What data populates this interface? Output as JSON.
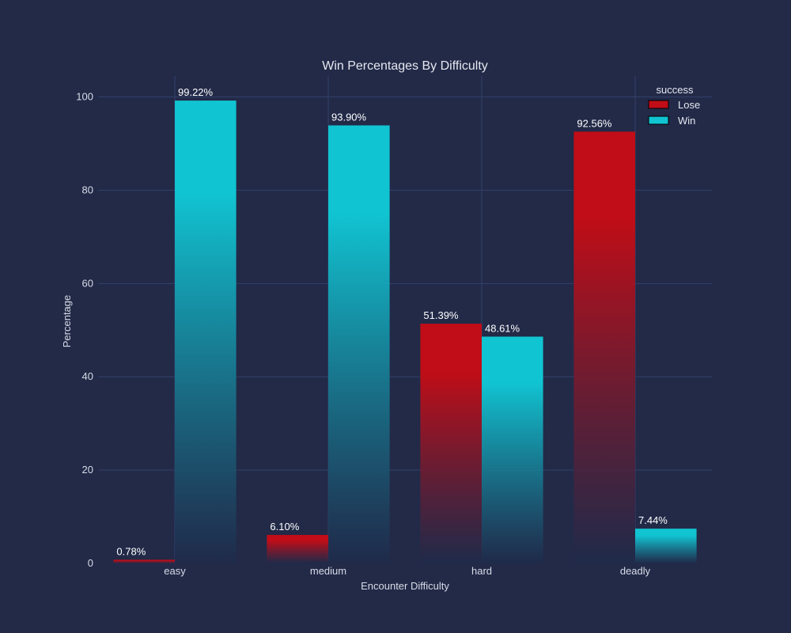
{
  "chart_data": {
    "type": "bar",
    "title": "Win Percentages By Difficulty",
    "xlabel": "Encounter Difficulty",
    "ylabel": "Percentage",
    "categories": [
      "easy",
      "medium",
      "hard",
      "deadly"
    ],
    "ylim": [
      0,
      104.5
    ],
    "yticks": [
      0,
      20,
      40,
      60,
      80,
      100
    ],
    "grid": true,
    "legend": {
      "title": "success",
      "placement": "top-right"
    },
    "series": [
      {
        "name": "Lose",
        "values": [
          0.78,
          6.1,
          51.39,
          92.56
        ],
        "labels": [
          "0.78%",
          "6.10%",
          "51.39%",
          "92.56%"
        ],
        "color": "#c00d17"
      },
      {
        "name": "Win",
        "values": [
          99.22,
          93.9,
          48.61,
          7.44
        ],
        "labels": [
          "99.22%",
          "93.90%",
          "48.61%",
          "7.44%"
        ],
        "color": "#11c4d2"
      }
    ]
  },
  "colors": {
    "background": "#222a48",
    "grid": "#33406a",
    "fade": "#1f2a4a"
  }
}
